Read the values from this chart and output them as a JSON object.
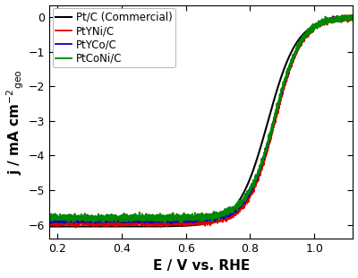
{
  "title": "",
  "xlabel": "E / V vs. RHE",
  "xlim": [
    0.175,
    1.12
  ],
  "ylim": [
    -6.4,
    0.35
  ],
  "xticks": [
    0.2,
    0.4,
    0.6,
    0.8,
    1.0
  ],
  "yticks": [
    0,
    -1,
    -2,
    -3,
    -4,
    -5,
    -6
  ],
  "curves": [
    {
      "label": "Pt/C (Commercial)",
      "color": "#000000",
      "lw": 1.5,
      "j_lim": -6.05,
      "E_half": 0.855,
      "noise": 0.0,
      "slope_factor": 22.0
    },
    {
      "label": "PtYNi/C",
      "color": "#dd0000",
      "lw": 1.3,
      "j_lim": -5.95,
      "E_half": 0.878,
      "noise": 0.04,
      "slope_factor": 24.0
    },
    {
      "label": "PtYCo/C",
      "color": "#0000cc",
      "lw": 1.3,
      "j_lim": -5.88,
      "E_half": 0.876,
      "noise": 0.025,
      "slope_factor": 24.0
    },
    {
      "label": "PtCoNi/C",
      "color": "#008800",
      "lw": 1.3,
      "j_lim": -5.8,
      "E_half": 0.876,
      "noise": 0.045,
      "slope_factor": 24.0
    }
  ],
  "legend_fontsize": 8.5,
  "tick_fontsize": 9,
  "label_fontsize": 11,
  "background_color": "#ffffff"
}
